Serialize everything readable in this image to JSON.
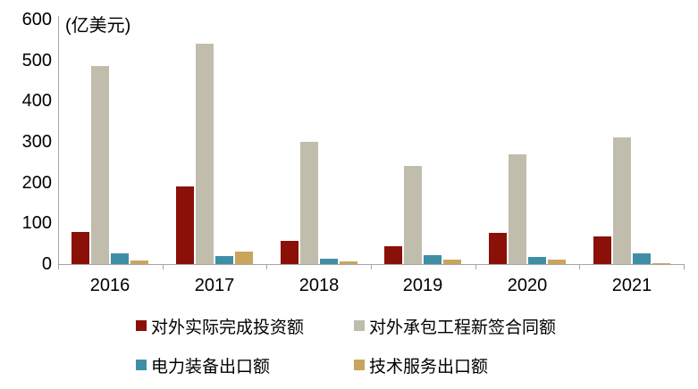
{
  "chart_data": {
    "type": "bar",
    "title": "",
    "unit_label": "(亿美元)",
    "xlabel": "",
    "ylabel": "",
    "categories": [
      "2016",
      "2017",
      "2018",
      "2019",
      "2020",
      "2021"
    ],
    "series": [
      {
        "name": "对外实际完成投资额",
        "color": "#8a1008",
        "values": [
          78,
          190,
          57,
          43,
          77,
          68
        ]
      },
      {
        "name": "对外承包工程新签合同额",
        "color": "#c0bdad",
        "values": [
          487,
          540,
          300,
          240,
          270,
          310
        ]
      },
      {
        "name": "电力装备出口额",
        "color": "#3e8fa6",
        "values": [
          27,
          20,
          14,
          22,
          17,
          26
        ]
      },
      {
        "name": "技术服务出口额",
        "color": "#c9a45c",
        "values": [
          8,
          30,
          7,
          12,
          10,
          3
        ]
      }
    ],
    "y_ticks": [
      0,
      100,
      200,
      300,
      400,
      500,
      600
    ],
    "ylim": [
      0,
      600
    ],
    "grid": false,
    "legend_position": "bottom",
    "legend_rows": [
      [
        "对外实际完成投资额",
        "对外承包工程新签合同额"
      ],
      [
        "电力装备出口额",
        "技术服务出口额"
      ]
    ],
    "axis_color": "#a6a6a6",
    "text_color": "#000000",
    "background_color": "#ffffff"
  }
}
